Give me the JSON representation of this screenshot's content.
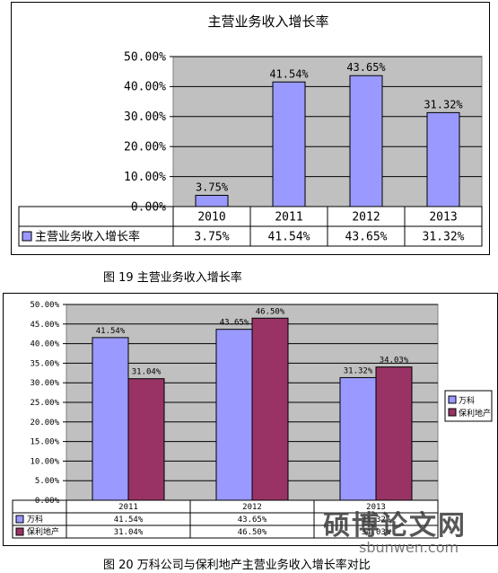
{
  "chart_data": [
    {
      "type": "bar",
      "title": "主营业务收入增长率",
      "categories": [
        "2010",
        "2011",
        "2012",
        "2013"
      ],
      "series": [
        {
          "name": "主营业务收入增长率",
          "values": [
            3.75,
            41.54,
            43.65,
            31.32
          ],
          "labels": [
            "3.75%",
            "41.54%",
            "43.65%",
            "31.32%"
          ]
        }
      ],
      "y_ticks": [
        "0.00%",
        "10.00%",
        "20.00%",
        "30.00%",
        "40.00%",
        "50.00%"
      ],
      "ylim": [
        0,
        50
      ],
      "data_table": true,
      "grid": true,
      "colors": {
        "series": [
          "#9999ff"
        ],
        "plot_bg": "#c0c0c0"
      }
    },
    {
      "type": "bar",
      "categories": [
        "2011",
        "2012",
        "2013"
      ],
      "series": [
        {
          "name": "万科",
          "values": [
            41.54,
            43.65,
            31.32
          ],
          "labels": [
            "41.54%",
            "43.65%",
            "31.32%"
          ]
        },
        {
          "name": "保利地产",
          "values": [
            31.04,
            46.5,
            34.03
          ],
          "labels": [
            "31.04%",
            "46.50%",
            "34.03%"
          ]
        }
      ],
      "y_ticks": [
        "0.00%",
        "5.00%",
        "10.00%",
        "15.00%",
        "20.00%",
        "25.00%",
        "30.00%",
        "35.00%",
        "40.00%",
        "45.00%",
        "50.00%"
      ],
      "ylim": [
        0,
        50
      ],
      "legend": "right",
      "data_table": true,
      "grid": true,
      "colors": {
        "series": [
          "#9999ff",
          "#993366"
        ],
        "plot_bg": "#c0c0c0"
      }
    }
  ],
  "captions": {
    "fig19": "图 19   主营业务收入增长率",
    "fig20": "图 20   万科公司与保利地产主营业务收入增长率对比"
  },
  "watermark": {
    "text": "硕博论文网",
    "url": "sbunwen.com"
  }
}
